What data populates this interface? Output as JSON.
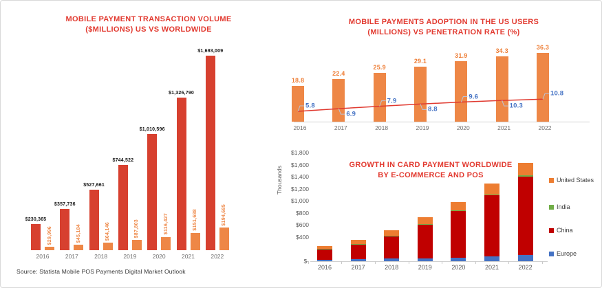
{
  "source": "Source: Statista Mobile POS Payments Digital Market Outlook",
  "colors": {
    "title_red": "#e23a30",
    "worldwide_red": "#d7402f",
    "us_orange": "#ee8746",
    "adoption_bar_orange": "#ee8746",
    "adoption_label_orange": "#ee7d35",
    "penetration_line_red": "#e0392f",
    "penetration_label_blue": "#4472c4",
    "legend_us_orange": "#ed7d31",
    "legend_india_green": "#70ad47",
    "legend_china_red": "#c00000",
    "legend_europe_blue": "#4472c4",
    "axis_gray": "#cfcfcf",
    "year_gray": "#6e6e6e"
  },
  "chart_data": [
    {
      "id": "transaction-volume",
      "type": "bar",
      "title": "MOBILE PAYMENT TRANSACTION VOLUME ($MILLIONS) US VS WORLDWIDE",
      "title_lines": [
        "MOBILE PAYMENT TRANSACTION VOLUME",
        "($MILLIONS) US VS WORLDWIDE"
      ],
      "categories": [
        "2016",
        "2017",
        "2018",
        "2019",
        "2020",
        "2021",
        "2022"
      ],
      "ylim": [
        0,
        1693009
      ],
      "series": [
        {
          "name": "Worldwide",
          "color": "#d7402f",
          "values": [
            230365,
            357736,
            527661,
            744522,
            1010596,
            1326790,
            1693009
          ],
          "labels": [
            "$230,365",
            "$357,736",
            "$527,661",
            "$744,522",
            "$1,010,596",
            "$1,326,790",
            "$1,693,009"
          ]
        },
        {
          "name": "US",
          "color": "#ee8746",
          "values": [
            29996,
            45184,
            64146,
            87803,
            116427,
            151688,
            194685
          ],
          "labels": [
            "$29,996",
            "$45,184",
            "$64,146",
            "$87,803",
            "$116,427",
            "$151,688",
            "$194,685"
          ]
        }
      ]
    },
    {
      "id": "us-adoption-vs-penetration",
      "type": "bar+line",
      "title": "MOBILE PAYMENTS ADOPTION IN THE US USERS (MILLIONS) VS PENETRATION RATE (%)",
      "title_lines": [
        "MOBILE PAYMENTS ADOPTION IN THE US USERS",
        "(MILLIONS) VS PENETRATION RATE (%)"
      ],
      "categories": [
        "2016",
        "2017",
        "2018",
        "2019",
        "2020",
        "2021",
        "2022"
      ],
      "bar_series": {
        "name": "Users (millions)",
        "color": "#ee8746",
        "values": [
          18.8,
          22.4,
          25.9,
          29.1,
          31.9,
          34.3,
          36.3
        ],
        "labels": [
          "18.8",
          "22.4",
          "25.9",
          "29.1",
          "31.9",
          "34.3",
          "36.3"
        ]
      },
      "line_series": {
        "name": "Penetration rate (%)",
        "color": "#e0392f",
        "values": [
          5.8,
          6.9,
          7.9,
          8.8,
          9.6,
          10.3,
          10.8
        ],
        "labels": [
          "5.8",
          "6.9",
          "7.9",
          "8.8",
          "9.6",
          "10.3",
          "10.8"
        ],
        "label_side": [
          "above",
          "below",
          "above",
          "below",
          "above",
          "below",
          "above"
        ]
      }
    },
    {
      "id": "card-payment-growth",
      "type": "stacked-bar",
      "title": "GROWTH IN CARD PAYMENT WORLDWIDE BY E-COMMERCE AND POS",
      "title_lines": [
        "GROWTH IN CARD PAYMENT WORLDWIDE",
        "BY E-COMMERCE AND POS"
      ],
      "categories": [
        "2016",
        "2017",
        "2018",
        "2019",
        "2020",
        "2021",
        "2022"
      ],
      "ylabel": "Thousands",
      "ylim": [
        0,
        1800
      ],
      "yticks": [
        {
          "label": "$1,800",
          "value": 1800
        },
        {
          "label": "$1,600",
          "value": 1600
        },
        {
          "label": "$1,400",
          "value": 1400
        },
        {
          "label": "$1,200",
          "value": 1200
        },
        {
          "label": "$1,000",
          "value": 1000
        },
        {
          "label": "$800",
          "value": 800
        },
        {
          "label": "$600",
          "value": 600
        },
        {
          "label": "$400",
          "value": 400
        },
        {
          "label": "$-",
          "value": 0
        }
      ],
      "stack_order_bottom_to_top": [
        "Europe",
        "China",
        "India",
        "United States"
      ],
      "series": [
        {
          "name": "Europe",
          "color": "#4472c4",
          "values": [
            20,
            30,
            45,
            50,
            60,
            82,
            100
          ]
        },
        {
          "name": "China",
          "color": "#c00000",
          "values": [
            185,
            255,
            370,
            565,
            780,
            1010,
            1300
          ]
        },
        {
          "name": "India",
          "color": "#70ad47",
          "values": [
            3,
            4,
            5,
            6,
            8,
            12,
            20
          ]
        },
        {
          "name": "United States",
          "color": "#ed7d31",
          "values": [
            45,
            62,
            92,
            105,
            135,
            185,
            215
          ]
        }
      ],
      "legend": [
        {
          "label": "United States",
          "color": "#ed7d31"
        },
        {
          "label": "India",
          "color": "#70ad47"
        },
        {
          "label": "China",
          "color": "#c00000"
        },
        {
          "label": "Europe",
          "color": "#4472c4"
        }
      ],
      "values_note": "segment values estimated from gridlines"
    }
  ]
}
